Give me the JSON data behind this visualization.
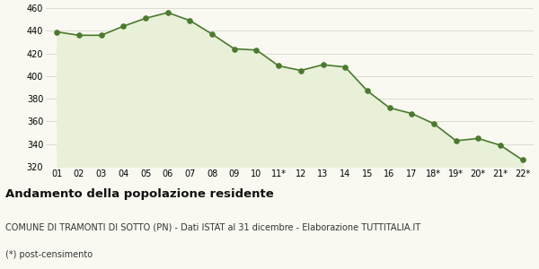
{
  "x_labels": [
    "01",
    "02",
    "03",
    "04",
    "05",
    "06",
    "07",
    "08",
    "09",
    "10",
    "11*",
    "12",
    "13",
    "14",
    "15",
    "16",
    "17",
    "18*",
    "19*",
    "20*",
    "21*",
    "22*"
  ],
  "y_values": [
    439,
    436,
    436,
    444,
    451,
    456,
    449,
    437,
    424,
    423,
    409,
    405,
    410,
    408,
    387,
    372,
    367,
    358,
    343,
    345,
    339,
    326
  ],
  "line_color": "#4a7a2e",
  "fill_color": "#e8f0d8",
  "marker_color": "#4a7a2e",
  "bg_color": "#f9f9f2",
  "grid_color": "#d0d0c8",
  "ylim": [
    320,
    460
  ],
  "yticks": [
    320,
    340,
    360,
    380,
    400,
    420,
    440,
    460
  ],
  "title1": "Andamento della popolazione residente",
  "title2": "COMUNE DI TRAMONTI DI SOTTO (PN) - Dati ISTAT al 31 dicembre - Elaborazione TUTTITALIA.IT",
  "title3": "(*) post-censimento",
  "title1_fontsize": 9.5,
  "title2_fontsize": 7.0,
  "title3_fontsize": 7.0,
  "tick_fontsize": 7.0,
  "marker_size": 14
}
